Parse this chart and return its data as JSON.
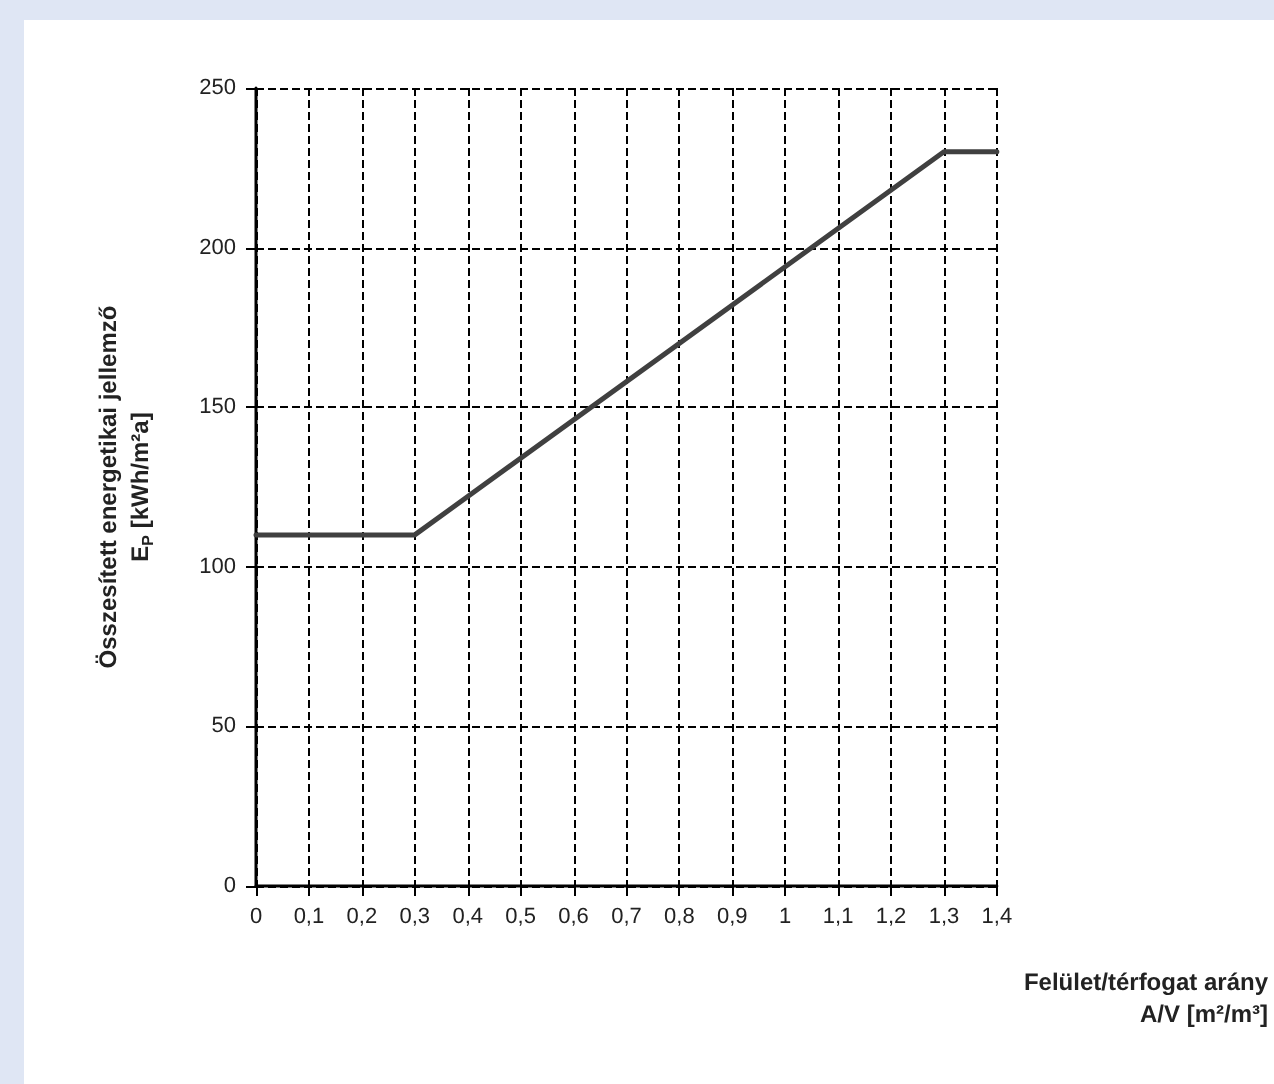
{
  "chart_data": {
    "type": "line",
    "xlabel": "Felület/térfogat arány\nA/V [m²/m³]",
    "ylabel": "Összesített energetikai jellemző\nE$_{P}$ [kWh/m²a]",
    "x": [
      0,
      0.3,
      1.3,
      1.4
    ],
    "series": [
      {
        "color": "#404040",
        "values": [
          110,
          110,
          230,
          230
        ]
      }
    ],
    "xlim": [
      0,
      1.4
    ],
    "xticks": [
      0,
      {
        "value": 0.1,
        "label": "0,1"
      },
      {
        "value": 0.2,
        "label": "0,2"
      },
      {
        "value": 0.3,
        "label": "0,3"
      },
      {
        "value": 0.4,
        "label": "0,4"
      },
      {
        "value": 0.5,
        "label": "0,5"
      },
      {
        "value": 0.6,
        "label": "0,6"
      },
      {
        "value": 0.7,
        "label": "0,7"
      },
      {
        "value": 0.8,
        "label": "0,8"
      },
      {
        "value": 0.9,
        "label": "0,9"
      },
      1,
      {
        "value": 1.1,
        "label": "1,1"
      },
      {
        "value": 1.2,
        "label": "1,2"
      },
      {
        "value": 1.3,
        "label": "1,3"
      },
      {
        "value": 1.4,
        "label": "1,4"
      }
    ],
    "ylim": [
      0,
      250
    ],
    "yticks": [
      0,
      50,
      100,
      150,
      200,
      250
    ],
    "grid": true,
    "line_style": "solid",
    "marker": "none"
  }
}
